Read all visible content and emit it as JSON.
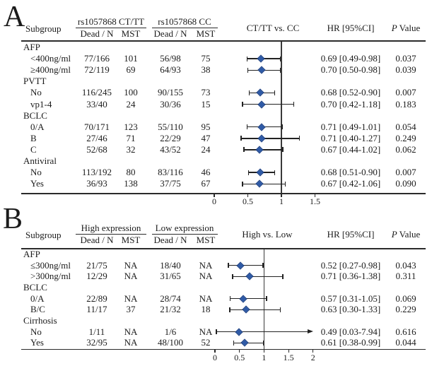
{
  "panels": [
    {
      "label": "A",
      "header": {
        "subgroup": "Subgroup",
        "group1": "rs1057868 CT/TT",
        "group2": "rs1057868 CC",
        "sub1": "Dead / N",
        "sub2": "MST",
        "sub3": "Dead / N",
        "sub4": "MST",
        "comparison": "CT/TT vs. CC",
        "hr": "HR [95%CI]",
        "p_italic": "P",
        "p_rest": " Value"
      },
      "axis": {
        "ticks": [
          "0",
          "0.5",
          "1",
          "1.5"
        ]
      },
      "rows": [
        {
          "section": "AFP"
        },
        {
          "label": "<400ng/ml",
          "cells": [
            "77/166",
            "101",
            "56/98",
            "75"
          ],
          "hr": 0.69,
          "lo": 0.49,
          "hi": 0.98,
          "hr_text": "0.69 [0.49-0.98]",
          "p": "0.037"
        },
        {
          "label": "≥400ng/ml",
          "cells": [
            "72/119",
            "69",
            "64/93",
            "38"
          ],
          "hr": 0.7,
          "lo": 0.5,
          "hi": 0.98,
          "hr_text": "0.70 [0.50-0.98]",
          "p": "0.039"
        },
        {
          "section": "PVTT"
        },
        {
          "label": "No",
          "cells": [
            "116/245",
            "100",
            "90/155",
            "73"
          ],
          "hr": 0.68,
          "lo": 0.52,
          "hi": 0.9,
          "hr_text": "0.68 [0.52-0.90]",
          "p": "0.007"
        },
        {
          "label": "vp1-4",
          "cells": [
            "33/40",
            "24",
            "30/36",
            "15"
          ],
          "hr": 0.7,
          "lo": 0.42,
          "hi": 1.18,
          "hr_text": "0.70 [0.42-1.18]",
          "p": "0.183"
        },
        {
          "section": "BCLC"
        },
        {
          "label": "0/A",
          "cells": [
            "70/171",
            "123",
            "55/110",
            "95"
          ],
          "hr": 0.71,
          "lo": 0.49,
          "hi": 1.01,
          "hr_text": "0.71 [0.49-1.01]",
          "p": "0.054"
        },
        {
          "label": "B",
          "cells": [
            "27/46",
            "71",
            "22/29",
            "47"
          ],
          "hr": 0.71,
          "lo": 0.4,
          "hi": 1.27,
          "hr_text": "0.71 [0.40-1.27]",
          "p": "0.249"
        },
        {
          "label": "C",
          "cells": [
            "52/68",
            "32",
            "43/52",
            "24"
          ],
          "hr": 0.67,
          "lo": 0.44,
          "hi": 1.02,
          "hr_text": "0.67 [0.44-1.02]",
          "p": "0.062"
        },
        {
          "section": "Antiviral"
        },
        {
          "label": "No",
          "cells": [
            "113/192",
            "80",
            "83/116",
            "46"
          ],
          "hr": 0.68,
          "lo": 0.51,
          "hi": 0.9,
          "hr_text": "0.68 [0.51-0.90]",
          "p": "0.007"
        },
        {
          "label": "Yes",
          "cells": [
            "36/93",
            "138",
            "37/75",
            "67"
          ],
          "hr": 0.67,
          "lo": 0.42,
          "hi": 1.06,
          "hr_text": "0.67 [0.42-1.06]",
          "p": "0.090"
        }
      ]
    },
    {
      "label": "B",
      "header": {
        "subgroup": "Subgroup",
        "group1": "High expression",
        "group2": "Low expression",
        "sub1": "Dead / N",
        "sub2": "MST",
        "sub3": "Dead / N",
        "sub4": "MST",
        "comparison": "High vs. Low",
        "hr": "HR [95%CI]",
        "p_italic": "P",
        "p_rest": " Value"
      },
      "axis": {
        "ticks": [
          "0",
          "0.5",
          "1",
          "1.5",
          "2"
        ]
      },
      "rows": [
        {
          "section": "AFP"
        },
        {
          "label": "≤300ng/ml",
          "cells": [
            "21/75",
            "NA",
            "18/40",
            "NA"
          ],
          "hr": 0.52,
          "lo": 0.27,
          "hi": 0.98,
          "hr_text": "0.52 [0.27-0.98]",
          "p": "0.043"
        },
        {
          "label": ">300ng/ml",
          "cells": [
            "12/29",
            "NA",
            "31/65",
            "NA"
          ],
          "hr": 0.71,
          "lo": 0.36,
          "hi": 1.38,
          "hr_text": "0.71 [0.36-1.38]",
          "p": "0.311"
        },
        {
          "section": "BCLC"
        },
        {
          "label": "0/A",
          "cells": [
            "22/89",
            "NA",
            "28/74",
            "NA"
          ],
          "hr": 0.57,
          "lo": 0.31,
          "hi": 1.05,
          "hr_text": "0.57 [0.31-1.05]",
          "p": "0.069"
        },
        {
          "label": "B/C",
          "cells": [
            "11/17",
            "37",
            "21/32",
            "18"
          ],
          "hr": 0.63,
          "lo": 0.3,
          "hi": 1.33,
          "hr_text": "0.63 [0.30-1.33]",
          "p": "0.229"
        },
        {
          "section": "Cirrhosis"
        },
        {
          "label": "No",
          "cells": [
            "1/11",
            "NA",
            "1/6",
            "NA"
          ],
          "hr": 0.49,
          "lo": 0.03,
          "hi": 7.94,
          "arrow": true,
          "hr_text": "0.49 [0.03-7.94]",
          "p": "0.616"
        },
        {
          "label": "Yes",
          "cells": [
            "32/95",
            "NA",
            "48/100",
            "52"
          ],
          "hr": 0.61,
          "lo": 0.38,
          "hi": 0.99,
          "hr_text": "0.61 [0.38-0.99]",
          "p": "0.044"
        }
      ]
    }
  ],
  "colors": {
    "diamond": "#2e5aa7",
    "diamond_edge": "#1c3f80",
    "line": "#222222"
  },
  "chart_data": [
    {
      "type": "scatter",
      "subtype": "forest_plot",
      "panel": "A",
      "comparison": "CT/TT vs. CC",
      "arm1_label": "rs1057868 CT/TT",
      "arm2_label": "rs1057868 CC",
      "column_headers": [
        "Subgroup",
        "Dead / N",
        "MST",
        "Dead / N",
        "MST",
        "HR [95%CI]",
        "P Value"
      ],
      "xlim": [
        0,
        1.5
      ],
      "x_ticks": [
        0,
        0.5,
        1,
        1.5
      ],
      "reference_line_x": 1,
      "grid": false,
      "legend_position": "none",
      "points": [
        {
          "section": "AFP",
          "subgroup": "<400ng/ml",
          "arm1_dead_n": "77/166",
          "arm1_mst": "101",
          "arm2_dead_n": "56/98",
          "arm2_mst": "75",
          "hr": 0.69,
          "ci95": [
            0.49,
            0.98
          ],
          "p_value": 0.037
        },
        {
          "section": "AFP",
          "subgroup": "≥400ng/ml",
          "arm1_dead_n": "72/119",
          "arm1_mst": "69",
          "arm2_dead_n": "64/93",
          "arm2_mst": "38",
          "hr": 0.7,
          "ci95": [
            0.5,
            0.98
          ],
          "p_value": 0.039
        },
        {
          "section": "PVTT",
          "subgroup": "No",
          "arm1_dead_n": "116/245",
          "arm1_mst": "100",
          "arm2_dead_n": "90/155",
          "arm2_mst": "73",
          "hr": 0.68,
          "ci95": [
            0.52,
            0.9
          ],
          "p_value": 0.007
        },
        {
          "section": "PVTT",
          "subgroup": "vp1-4",
          "arm1_dead_n": "33/40",
          "arm1_mst": "24",
          "arm2_dead_n": "30/36",
          "arm2_mst": "15",
          "hr": 0.7,
          "ci95": [
            0.42,
            1.18
          ],
          "p_value": 0.183
        },
        {
          "section": "BCLC",
          "subgroup": "0/A",
          "arm1_dead_n": "70/171",
          "arm1_mst": "123",
          "arm2_dead_n": "55/110",
          "arm2_mst": "95",
          "hr": 0.71,
          "ci95": [
            0.49,
            1.01
          ],
          "p_value": 0.054
        },
        {
          "section": "BCLC",
          "subgroup": "B",
          "arm1_dead_n": "27/46",
          "arm1_mst": "71",
          "arm2_dead_n": "22/29",
          "arm2_mst": "47",
          "hr": 0.71,
          "ci95": [
            0.4,
            1.27
          ],
          "p_value": 0.249
        },
        {
          "section": "BCLC",
          "subgroup": "C",
          "arm1_dead_n": "52/68",
          "arm1_mst": "32",
          "arm2_dead_n": "43/52",
          "arm2_mst": "24",
          "hr": 0.67,
          "ci95": [
            0.44,
            1.02
          ],
          "p_value": 0.062
        },
        {
          "section": "Antiviral",
          "subgroup": "No",
          "arm1_dead_n": "113/192",
          "arm1_mst": "80",
          "arm2_dead_n": "83/116",
          "arm2_mst": "46",
          "hr": 0.68,
          "ci95": [
            0.51,
            0.9
          ],
          "p_value": 0.007
        },
        {
          "section": "Antiviral",
          "subgroup": "Yes",
          "arm1_dead_n": "36/93",
          "arm1_mst": "138",
          "arm2_dead_n": "37/75",
          "arm2_mst": "67",
          "hr": 0.67,
          "ci95": [
            0.42,
            1.06
          ],
          "p_value": 0.09
        }
      ]
    },
    {
      "type": "scatter",
      "subtype": "forest_plot",
      "panel": "B",
      "comparison": "High vs. Low",
      "arm1_label": "High expression",
      "arm2_label": "Low expression",
      "column_headers": [
        "Subgroup",
        "Dead / N",
        "MST",
        "Dead / N",
        "MST",
        "HR [95%CI]",
        "P Value"
      ],
      "xlim": [
        0,
        2
      ],
      "x_ticks": [
        0,
        0.5,
        1,
        1.5,
        2
      ],
      "reference_line_x": 1,
      "grid": false,
      "legend_position": "none",
      "points": [
        {
          "section": "AFP",
          "subgroup": "≤300ng/ml",
          "arm1_dead_n": "21/75",
          "arm1_mst": "NA",
          "arm2_dead_n": "18/40",
          "arm2_mst": "NA",
          "hr": 0.52,
          "ci95": [
            0.27,
            0.98
          ],
          "p_value": 0.043
        },
        {
          "section": "AFP",
          "subgroup": ">300ng/ml",
          "arm1_dead_n": "12/29",
          "arm1_mst": "NA",
          "arm2_dead_n": "31/65",
          "arm2_mst": "NA",
          "hr": 0.71,
          "ci95": [
            0.36,
            1.38
          ],
          "p_value": 0.311
        },
        {
          "section": "BCLC",
          "subgroup": "0/A",
          "arm1_dead_n": "22/89",
          "arm1_mst": "NA",
          "arm2_dead_n": "28/74",
          "arm2_mst": "NA",
          "hr": 0.57,
          "ci95": [
            0.31,
            1.05
          ],
          "p_value": 0.069
        },
        {
          "section": "BCLC",
          "subgroup": "B/C",
          "arm1_dead_n": "11/17",
          "arm1_mst": "37",
          "arm2_dead_n": "21/32",
          "arm2_mst": "18",
          "hr": 0.63,
          "ci95": [
            0.3,
            1.33
          ],
          "p_value": 0.229
        },
        {
          "section": "Cirrhosis",
          "subgroup": "No",
          "arm1_dead_n": "1/11",
          "arm1_mst": "NA",
          "arm2_dead_n": "1/6",
          "arm2_mst": "NA",
          "hr": 0.49,
          "ci95": [
            0.03,
            7.94
          ],
          "ci_exceeds_axis": true,
          "p_value": 0.616
        },
        {
          "section": "Cirrhosis",
          "subgroup": "Yes",
          "arm1_dead_n": "32/95",
          "arm1_mst": "NA",
          "arm2_dead_n": "48/100",
          "arm2_mst": "52",
          "hr": 0.61,
          "ci95": [
            0.38,
            0.99
          ],
          "p_value": 0.044
        }
      ]
    }
  ]
}
